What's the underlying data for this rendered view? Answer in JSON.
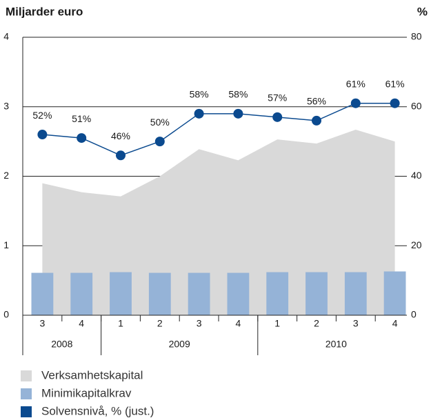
{
  "chart_data": {
    "type": "combo",
    "y_label": "Miljarder euro",
    "y2_label": "%",
    "categories": [
      "3",
      "4",
      "1",
      "2",
      "3",
      "4",
      "1",
      "2",
      "3",
      "4"
    ],
    "x_groups": [
      {
        "label": "2008",
        "size": 2
      },
      {
        "label": "2009",
        "size": 4
      },
      {
        "label": "2010",
        "size": 4
      }
    ],
    "ylim": [
      0,
      4
    ],
    "yticks": [
      0,
      1,
      2,
      3,
      4
    ],
    "y2lim": [
      0,
      80
    ],
    "y2ticks": [
      0,
      20,
      40,
      60,
      80
    ],
    "grid": true,
    "series": [
      {
        "name": "Verksamhetskapital",
        "type": "area",
        "color": "#d9d9d9",
        "values": [
          1.9,
          1.77,
          1.71,
          2.0,
          2.39,
          2.23,
          2.53,
          2.47,
          2.67,
          2.5
        ]
      },
      {
        "name": "Minimikapitalkrav",
        "type": "bar",
        "color": "#95b3d7",
        "values": [
          0.61,
          0.61,
          0.62,
          0.61,
          0.61,
          0.61,
          0.62,
          0.62,
          0.62,
          0.63
        ]
      },
      {
        "name": "Solvensnivå, % (just.)",
        "type": "line",
        "axis": "y2",
        "color": "#0b4a8f",
        "values": [
          52,
          51,
          46,
          50,
          58,
          58,
          57,
          56,
          61,
          61
        ],
        "value_labels": [
          "52%",
          "51%",
          "46%",
          "50%",
          "58%",
          "58%",
          "57%",
          "56%",
          "61%",
          "61%"
        ]
      }
    ]
  }
}
